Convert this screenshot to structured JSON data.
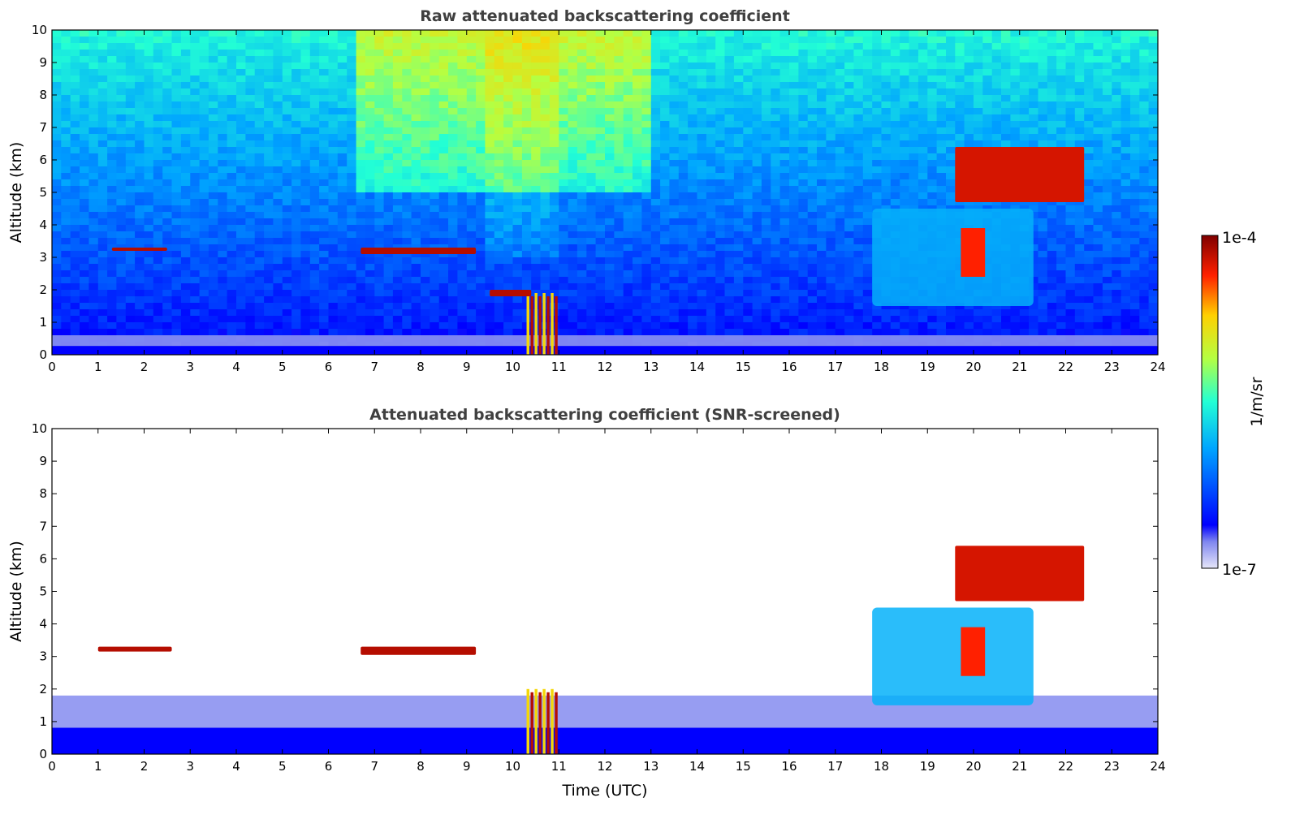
{
  "chart_data": [
    {
      "type": "heatmap",
      "title": "Raw attenuated backscattering coefficient",
      "xlabel": "",
      "ylabel": "Altitude (km)",
      "xlim": [
        0,
        24
      ],
      "ylim": [
        0,
        10
      ],
      "xticks": [
        0,
        1,
        2,
        3,
        4,
        5,
        6,
        7,
        8,
        9,
        10,
        11,
        12,
        13,
        14,
        15,
        16,
        17,
        18,
        19,
        20,
        21,
        22,
        23,
        24
      ],
      "yticks": [
        0,
        1,
        2,
        3,
        4,
        5,
        6,
        7,
        8,
        9,
        10
      ],
      "screened": false,
      "features": [
        {
          "kind": "boundary_layer",
          "x": [
            0,
            24
          ],
          "y": [
            0,
            0.6
          ]
        },
        {
          "kind": "cloud_layer",
          "x": [
            1.3,
            2.5
          ],
          "y": [
            3.2,
            3.3
          ]
        },
        {
          "kind": "cloud_layer",
          "x": [
            6.7,
            9.2
          ],
          "y": [
            3.1,
            3.3
          ]
        },
        {
          "kind": "precipitation",
          "x": [
            10.3,
            11.0
          ],
          "y": [
            0,
            1.9
          ]
        },
        {
          "kind": "cloud_layer",
          "x": [
            9.5,
            10.4
          ],
          "y": [
            1.8,
            2.0
          ]
        },
        {
          "kind": "cirrus",
          "x": [
            19.6,
            22.4
          ],
          "y": [
            4.7,
            6.4
          ]
        },
        {
          "kind": "convective_cloud",
          "x": [
            17.8,
            21.3
          ],
          "y": [
            1.5,
            4.5
          ]
        }
      ]
    },
    {
      "type": "heatmap",
      "title": "Attenuated backscattering coefficient (SNR-screened)",
      "xlabel": "Time (UTC)",
      "ylabel": "Altitude (km)",
      "xlim": [
        0,
        24
      ],
      "ylim": [
        0,
        10
      ],
      "xticks": [
        0,
        1,
        2,
        3,
        4,
        5,
        6,
        7,
        8,
        9,
        10,
        11,
        12,
        13,
        14,
        15,
        16,
        17,
        18,
        19,
        20,
        21,
        22,
        23,
        24
      ],
      "yticks": [
        0,
        1,
        2,
        3,
        4,
        5,
        6,
        7,
        8,
        9,
        10
      ],
      "screened": true,
      "features": [
        {
          "kind": "boundary_layer",
          "x": [
            0,
            24
          ],
          "y": [
            0,
            1.8
          ]
        },
        {
          "kind": "cloud_layer",
          "x": [
            1.0,
            2.6
          ],
          "y": [
            3.15,
            3.3
          ]
        },
        {
          "kind": "cloud_layer",
          "x": [
            6.7,
            9.2
          ],
          "y": [
            3.05,
            3.3
          ]
        },
        {
          "kind": "precipitation",
          "x": [
            10.3,
            11.0
          ],
          "y": [
            0,
            2.0
          ]
        },
        {
          "kind": "cirrus",
          "x": [
            19.6,
            22.4
          ],
          "y": [
            4.7,
            6.4
          ]
        },
        {
          "kind": "convective_cloud",
          "x": [
            17.8,
            21.3
          ],
          "y": [
            1.5,
            4.5
          ]
        }
      ]
    }
  ],
  "colorbar": {
    "min_label": "1e-7",
    "max_label": "1e-4",
    "unit_label": "1/m/sr",
    "colormap": "jet",
    "scale": "log"
  }
}
